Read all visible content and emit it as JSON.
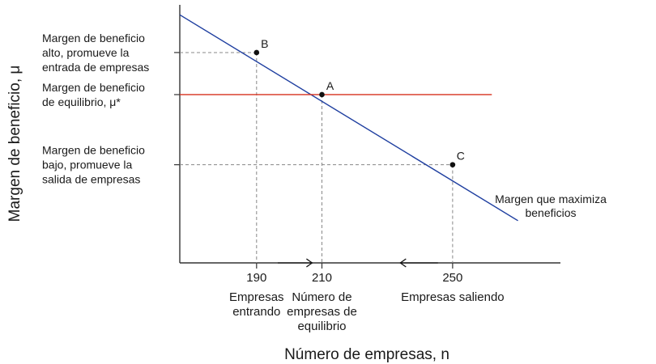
{
  "chart_data": {
    "type": "line",
    "xlabel": "Número de empresas, n",
    "ylabel": "Margen de beneficio, μ",
    "x_ticks": [
      {
        "value": 190,
        "label": "190",
        "caption": [
          "Empresas",
          "entrando"
        ]
      },
      {
        "value": 210,
        "label": "210",
        "caption": [
          "Número de",
          "empresas de",
          "equilibrio"
        ]
      },
      {
        "value": 250,
        "label": "250",
        "caption": [
          "Empresas saliendo"
        ]
      }
    ],
    "y_levels": [
      {
        "id": "high",
        "value": 0.75,
        "caption": [
          "Margen de beneficio",
          "alto, promueve la",
          "entrada de empresas"
        ]
      },
      {
        "id": "eq",
        "value": 0.6,
        "caption": [
          "Margen de beneficio",
          "de equilibrio, μ*"
        ]
      },
      {
        "id": "low",
        "value": 0.35,
        "caption": [
          "Margen de beneficio",
          "bajo, promueve la",
          "salida de empresas"
        ]
      }
    ],
    "xlim": [
      166.5,
      283
    ],
    "ylim": [
      0,
      0.92
    ],
    "series": [
      {
        "name": "Margen que maximiza beneficios",
        "label_lines": [
          "Margen que maximiza",
          "beneficios"
        ],
        "color": "#1f3fa0",
        "x": [
          166.5,
          270
        ],
        "y": [
          0.8845,
          0.1505
        ]
      },
      {
        "name": "",
        "color": "#d7301f",
        "x": [
          166.5,
          262
        ],
        "y": [
          0.6,
          0.6
        ]
      }
    ],
    "points": [
      {
        "label": "B",
        "x": 190,
        "y": 0.75
      },
      {
        "label": "A",
        "x": 210,
        "y": 0.6
      },
      {
        "label": "C",
        "x": 250,
        "y": 0.35
      }
    ],
    "arrows": [
      {
        "from": 196.5,
        "to": 207,
        "direction": "right"
      },
      {
        "from": 245.5,
        "to": 234,
        "direction": "left"
      }
    ],
    "grid": false
  }
}
